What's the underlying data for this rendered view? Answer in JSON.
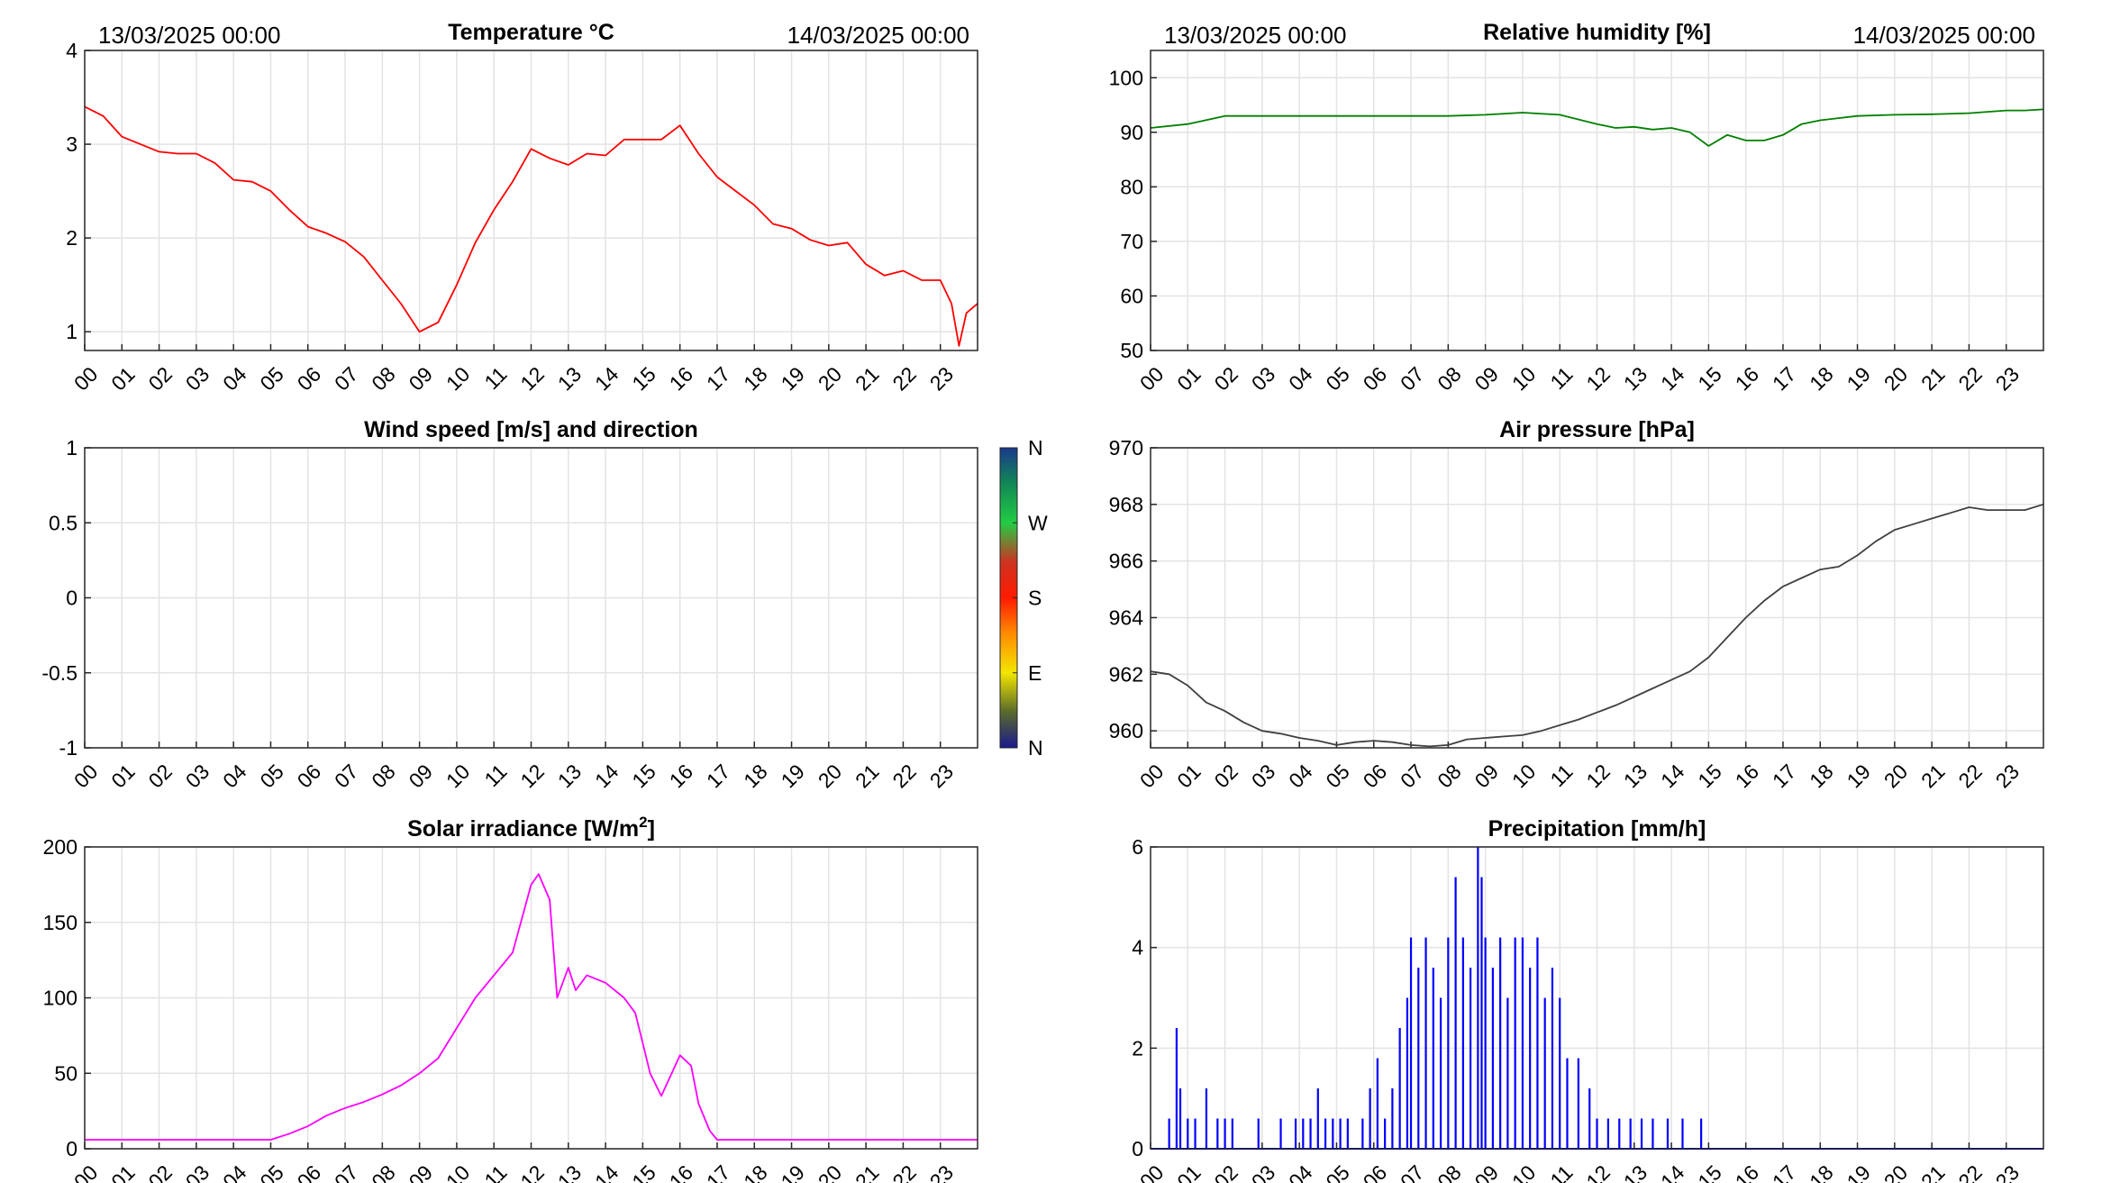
{
  "chart_data": [
    {
      "id": "temperature",
      "type": "line",
      "title": "Temperature °C",
      "start_label": "13/03/2025 00:00",
      "end_label": "14/03/2025 00:00",
      "color": "#ff0000",
      "xlim": [
        0,
        24
      ],
      "ylim": [
        0.8,
        4
      ],
      "yticks": [
        "1",
        "2",
        "3",
        "4"
      ],
      "xticks": [
        "00",
        "01",
        "02",
        "03",
        "04",
        "05",
        "06",
        "07",
        "08",
        "09",
        "10",
        "11",
        "12",
        "13",
        "14",
        "15",
        "16",
        "17",
        "18",
        "19",
        "20",
        "21",
        "22",
        "23"
      ],
      "x": [
        0,
        0.5,
        1,
        1.5,
        2,
        2.5,
        3,
        3.5,
        4,
        4.5,
        5,
        5.5,
        6,
        6.5,
        7,
        7.5,
        8,
        8.5,
        9,
        9.5,
        10,
        10.5,
        11,
        11.5,
        12,
        12.5,
        13,
        13.5,
        14,
        14.5,
        15,
        15.5,
        16,
        16.5,
        17,
        17.5,
        18,
        18.5,
        19,
        19.5,
        20,
        20.5,
        21,
        21.5,
        22,
        22.5,
        23,
        23.3,
        23.5,
        23.7,
        24
      ],
      "values": [
        3.4,
        3.3,
        3.08,
        3.0,
        2.92,
        2.9,
        2.9,
        2.8,
        2.62,
        2.6,
        2.5,
        2.3,
        2.12,
        2.05,
        1.96,
        1.8,
        1.55,
        1.3,
        1.0,
        1.1,
        1.5,
        1.95,
        2.3,
        2.6,
        2.95,
        2.85,
        2.78,
        2.9,
        2.88,
        3.05,
        3.05,
        3.05,
        3.2,
        2.9,
        2.65,
        2.5,
        2.35,
        2.15,
        2.1,
        1.98,
        1.92,
        1.95,
        1.72,
        1.6,
        1.65,
        1.55,
        1.55,
        1.3,
        0.85,
        1.2,
        1.3
      ]
    },
    {
      "id": "humidity",
      "type": "line",
      "title": "Relative humidity [%]",
      "start_label": "13/03/2025 00:00",
      "end_label": "14/03/2025 00:00",
      "color": "#008000",
      "xlim": [
        0,
        24
      ],
      "ylim": [
        50,
        105
      ],
      "yticks": [
        "50",
        "60",
        "70",
        "80",
        "90",
        "100"
      ],
      "xticks": [
        "00",
        "01",
        "02",
        "03",
        "04",
        "05",
        "06",
        "07",
        "08",
        "09",
        "10",
        "11",
        "12",
        "13",
        "14",
        "15",
        "16",
        "17",
        "18",
        "19",
        "20",
        "21",
        "22",
        "23"
      ],
      "x": [
        0,
        1,
        2,
        3,
        4,
        5,
        6,
        7,
        8,
        9,
        10,
        11,
        12,
        12.5,
        13,
        13.5,
        14,
        14.5,
        15,
        15.5,
        16,
        16.5,
        17,
        17.5,
        18,
        19,
        20,
        21,
        22,
        23,
        23.5,
        24
      ],
      "values": [
        90.8,
        91.5,
        93.0,
        93.0,
        93.0,
        93.0,
        93.0,
        93.0,
        93.0,
        93.2,
        93.6,
        93.2,
        91.5,
        90.8,
        91.0,
        90.5,
        90.8,
        90.0,
        87.5,
        89.5,
        88.5,
        88.5,
        89.5,
        91.5,
        92.2,
        93.0,
        93.2,
        93.3,
        93.5,
        94.0,
        94.0,
        94.2
      ]
    },
    {
      "id": "wind",
      "type": "line",
      "title": "Wind speed [m/s] and direction",
      "xlim": [
        0,
        24
      ],
      "ylim": [
        -1,
        1
      ],
      "yticks": [
        "-1",
        "-0.5",
        "0",
        "0.5",
        "1"
      ],
      "xticks": [
        "00",
        "01",
        "02",
        "03",
        "04",
        "05",
        "06",
        "07",
        "08",
        "09",
        "10",
        "11",
        "12",
        "13",
        "14",
        "15",
        "16",
        "17",
        "18",
        "19",
        "20",
        "21",
        "22",
        "23"
      ],
      "x": [],
      "values": [],
      "colorbar_labels": [
        "N",
        "E",
        "S",
        "W",
        "N"
      ]
    },
    {
      "id": "pressure",
      "type": "line",
      "title": "Air pressure [hPa]",
      "color": "#404040",
      "xlim": [
        0,
        24
      ],
      "ylim": [
        959.4,
        970
      ],
      "yticks": [
        "960",
        "962",
        "964",
        "966",
        "968",
        "970"
      ],
      "xticks": [
        "00",
        "01",
        "02",
        "03",
        "04",
        "05",
        "06",
        "07",
        "08",
        "09",
        "10",
        "11",
        "12",
        "13",
        "14",
        "15",
        "16",
        "17",
        "18",
        "19",
        "20",
        "21",
        "22",
        "23"
      ],
      "x": [
        0,
        0.5,
        1,
        1.5,
        2,
        2.5,
        3,
        3.5,
        4,
        4.5,
        5,
        5.5,
        6,
        6.5,
        7,
        7.5,
        8,
        8.5,
        9,
        9.5,
        10,
        10.5,
        11,
        11.5,
        12,
        12.5,
        13,
        13.5,
        14,
        14.5,
        15,
        15.5,
        16,
        16.5,
        17,
        17.5,
        18,
        18.5,
        19,
        19.5,
        20,
        20.5,
        21,
        21.5,
        22,
        22.5,
        23,
        23.5,
        24
      ],
      "values": [
        962.1,
        962.0,
        961.6,
        961.0,
        960.7,
        960.3,
        960.0,
        959.9,
        959.75,
        959.65,
        959.5,
        959.6,
        959.65,
        959.6,
        959.5,
        959.45,
        959.5,
        959.7,
        959.75,
        959.8,
        959.85,
        960.0,
        960.2,
        960.4,
        960.65,
        960.9,
        961.2,
        961.5,
        961.8,
        962.1,
        962.6,
        963.3,
        964.0,
        964.6,
        965.1,
        965.4,
        965.7,
        965.8,
        966.2,
        966.7,
        967.1,
        967.3,
        967.5,
        967.7,
        967.9,
        967.8,
        967.8,
        967.8,
        968.0
      ]
    },
    {
      "id": "solar",
      "type": "line",
      "title": "Solar irradiance [W/m",
      "title_sup": "2",
      "title_end": "]",
      "color": "#ff00ff",
      "xlim": [
        0,
        24
      ],
      "ylim": [
        0,
        200
      ],
      "yticks": [
        "0",
        "50",
        "100",
        "150",
        "200"
      ],
      "xticks": [
        "00",
        "01",
        "02",
        "03",
        "04",
        "05",
        "06",
        "07",
        "08",
        "09",
        "10",
        "11",
        "12",
        "13",
        "14",
        "15",
        "16",
        "17",
        "18",
        "19",
        "20",
        "21",
        "22",
        "23"
      ],
      "x": [
        0,
        5,
        5.5,
        6,
        6.5,
        7,
        7.5,
        8,
        8.5,
        9,
        9.5,
        10,
        10.5,
        11,
        11.5,
        12,
        12.2,
        12.5,
        12.7,
        13,
        13.2,
        13.5,
        14,
        14.5,
        14.8,
        15,
        15.2,
        15.5,
        16,
        16.3,
        16.5,
        16.8,
        17,
        18,
        24
      ],
      "values": [
        6,
        6,
        10,
        15,
        22,
        27,
        31,
        36,
        42,
        50,
        60,
        80,
        100,
        115,
        130,
        175,
        182,
        165,
        100,
        120,
        105,
        115,
        110,
        100,
        90,
        70,
        50,
        35,
        62,
        55,
        30,
        12,
        6,
        6,
        6
      ]
    },
    {
      "id": "precipitation",
      "type": "bar",
      "title": "Precipitation [mm/h]",
      "color": "#0000ff",
      "xlim": [
        0,
        24
      ],
      "ylim": [
        0,
        6
      ],
      "yticks": [
        "0",
        "2",
        "4",
        "6"
      ],
      "xticks": [
        "00",
        "01",
        "02",
        "03",
        "04",
        "05",
        "06",
        "07",
        "08",
        "09",
        "10",
        "11",
        "12",
        "13",
        "14",
        "15",
        "16",
        "17",
        "18",
        "19",
        "20",
        "21",
        "22",
        "23"
      ],
      "x": [
        0.5,
        0.7,
        0.8,
        1.0,
        1.2,
        1.5,
        1.8,
        2.0,
        2.2,
        2.9,
        3.5,
        3.9,
        4.1,
        4.3,
        4.5,
        4.7,
        4.9,
        5.1,
        5.3,
        5.7,
        5.9,
        6.1,
        6.3,
        6.5,
        6.7,
        6.9,
        7.0,
        7.2,
        7.4,
        7.6,
        7.8,
        8.0,
        8.2,
        8.4,
        8.6,
        8.8,
        8.9,
        9.0,
        9.2,
        9.4,
        9.6,
        9.8,
        10.0,
        10.2,
        10.4,
        10.6,
        10.8,
        11.0,
        11.2,
        11.5,
        11.8,
        12.0,
        12.3,
        12.6,
        12.9,
        13.2,
        13.5,
        13.9,
        14.3,
        14.8
      ],
      "values": [
        0.6,
        2.4,
        1.2,
        0.6,
        0.6,
        1.2,
        0.6,
        0.6,
        0.6,
        0.6,
        0.6,
        0.6,
        0.6,
        0.6,
        1.2,
        0.6,
        0.6,
        0.6,
        0.6,
        0.6,
        1.2,
        1.8,
        0.6,
        1.2,
        2.4,
        3.0,
        4.2,
        3.6,
        4.2,
        3.6,
        3.0,
        4.2,
        5.4,
        4.2,
        3.6,
        6.0,
        5.4,
        4.2,
        3.6,
        4.2,
        3.0,
        4.2,
        4.2,
        3.6,
        4.2,
        3.0,
        3.6,
        3.0,
        1.8,
        1.8,
        1.2,
        0.6,
        0.6,
        0.6,
        0.6,
        0.6,
        0.6,
        0.6,
        0.6,
        0.6
      ]
    }
  ]
}
